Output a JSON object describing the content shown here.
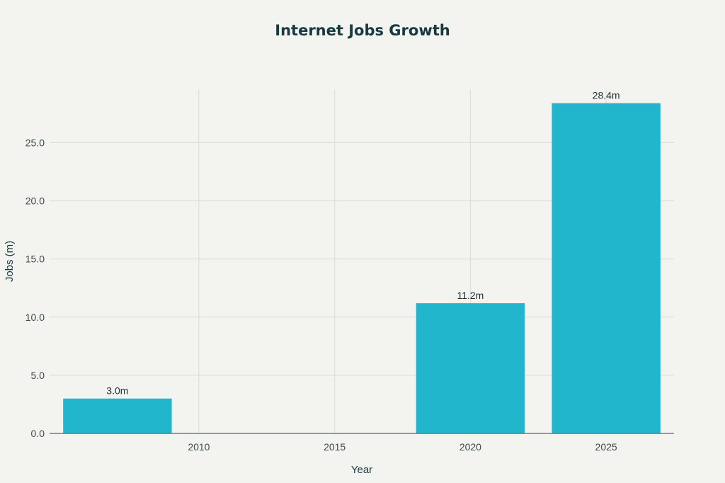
{
  "chart_data": {
    "type": "bar",
    "title": "Internet Jobs Growth",
    "xlabel": "Year",
    "ylabel": "Jobs (m)",
    "categories": [
      2007,
      2010,
      2015,
      2020,
      2025
    ],
    "x_ticks": [
      "2010",
      "2015",
      "2020",
      "2025"
    ],
    "x_tick_values": [
      2010,
      2015,
      2020,
      2025
    ],
    "values": [
      3.0,
      null,
      null,
      11.2,
      28.4
    ],
    "data_labels": [
      "3.0m",
      "",
      "",
      "11.2m",
      "28.4m"
    ],
    "xlim": [
      2004.5,
      2027.5
    ],
    "ylim": [
      0,
      29.6
    ],
    "y_ticks": [
      0,
      5,
      10,
      15,
      20,
      25
    ],
    "y_tick_labels": [
      "0.0",
      "5.0",
      "10.0",
      "15.0",
      "20.0",
      "25.0"
    ],
    "grid": true,
    "colors": {
      "bar": "#22b6cc",
      "background": "#f3f3ef",
      "grid": "#dcdcd6",
      "axis": "#5a6366",
      "title": "#173a40"
    }
  }
}
